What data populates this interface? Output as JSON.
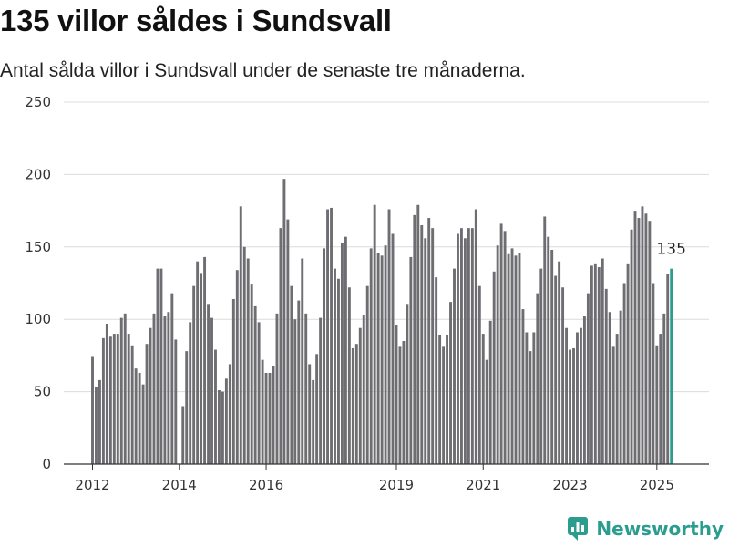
{
  "header": {
    "title": "135 villor såldes i Sundsvall",
    "subtitle": "Antal sålda villor i Sundsvall under de senaste tre månaderna."
  },
  "brand": {
    "name": "Newsworthy"
  },
  "colors": {
    "bar": "#6d6d72",
    "highlight": "#2a9d8f",
    "grid": "#dcdcdc",
    "axis": "#333333",
    "brand": "#2a9d8f"
  },
  "chart_data": {
    "type": "bar",
    "title": "135 villor såldes i Sundsvall",
    "subtitle": "Antal sålda villor i Sundsvall under de senaste tre månaderna.",
    "xlabel": "",
    "ylabel": "",
    "ylim": [
      0,
      250
    ],
    "yticks": [
      0,
      50,
      100,
      150,
      200,
      250
    ],
    "x_start": "2012-01",
    "x_ticks": [
      {
        "label": "2012",
        "month": "2012-01"
      },
      {
        "label": "2014",
        "month": "2014-01"
      },
      {
        "label": "2016",
        "month": "2016-01"
      },
      {
        "label": "2019",
        "month": "2019-01"
      },
      {
        "label": "2021",
        "month": "2021-01"
      },
      {
        "label": "2023",
        "month": "2023-01"
      },
      {
        "label": "2025",
        "month": "2025-01"
      }
    ],
    "grid": true,
    "highlight_last": true,
    "last_label": "135",
    "values": [
      74,
      53,
      58,
      87,
      97,
      88,
      90,
      90,
      101,
      104,
      90,
      82,
      66,
      63,
      55,
      83,
      94,
      104,
      135,
      135,
      102,
      105,
      118,
      86,
      0,
      40,
      78,
      98,
      123,
      140,
      132,
      143,
      110,
      101,
      79,
      51,
      50,
      59,
      69,
      114,
      134,
      178,
      150,
      142,
      124,
      109,
      98,
      72,
      63,
      63,
      68,
      104,
      163,
      197,
      169,
      123,
      100,
      113,
      142,
      104,
      69,
      58,
      76,
      101,
      149,
      176,
      177,
      135,
      128,
      153,
      157,
      122,
      80,
      83,
      94,
      103,
      123,
      149,
      179,
      146,
      144,
      151,
      176,
      159,
      96,
      81,
      85,
      110,
      143,
      172,
      179,
      165,
      156,
      170,
      163,
      129,
      89,
      81,
      89,
      112,
      135,
      159,
      163,
      156,
      163,
      163,
      176,
      123,
      90,
      72,
      99,
      133,
      151,
      166,
      161,
      145,
      149,
      144,
      146,
      107,
      91,
      78,
      91,
      118,
      135,
      171,
      157,
      148,
      130,
      140,
      122,
      94,
      79,
      80,
      91,
      94,
      102,
      118,
      137,
      138,
      136,
      142,
      121,
      105,
      81,
      90,
      106,
      125,
      138,
      162,
      175,
      170,
      178,
      173,
      168,
      125,
      82,
      90,
      104,
      131,
      135
    ]
  }
}
